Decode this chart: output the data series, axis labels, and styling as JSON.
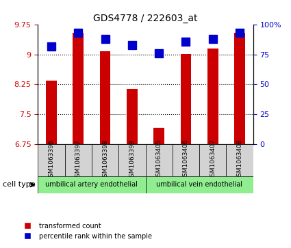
{
  "title": "GDS4778 / 222603_at",
  "samples": [
    "GSM1063396",
    "GSM1063397",
    "GSM1063398",
    "GSM1063399",
    "GSM1063405",
    "GSM1063406",
    "GSM1063407",
    "GSM1063408"
  ],
  "red_values": [
    8.35,
    9.55,
    9.08,
    8.13,
    7.15,
    9.02,
    9.15,
    9.55
  ],
  "blue_values": [
    82,
    93,
    88,
    83,
    76,
    86,
    88,
    93
  ],
  "ylim_left": [
    6.75,
    9.75
  ],
  "ylim_right": [
    0,
    100
  ],
  "yticks_left": [
    6.75,
    7.5,
    8.25,
    9.0,
    9.75
  ],
  "yticks_right": [
    0,
    25,
    50,
    75,
    100
  ],
  "ytick_labels_left": [
    "6.75",
    "7.5",
    "8.25",
    "9",
    "9.75"
  ],
  "ytick_labels_right": [
    "0",
    "25",
    "50",
    "75",
    "100%"
  ],
  "cell_types": [
    {
      "label": "umbilical artery endothelial",
      "start": 0,
      "end": 4,
      "color": "#90EE90"
    },
    {
      "label": "umbilical vein endothelial",
      "start": 4,
      "end": 8,
      "color": "#90EE90"
    }
  ],
  "cell_type_label": "cell type",
  "red_color": "#cc0000",
  "blue_color": "#0000cc",
  "bar_width": 0.4,
  "blue_marker_size": 8,
  "grid_color": "#000000",
  "background_color": "#ffffff",
  "tick_label_area_bg": "#d3d3d3",
  "legend_red_label": "transformed count",
  "legend_blue_label": "percentile rank within the sample"
}
